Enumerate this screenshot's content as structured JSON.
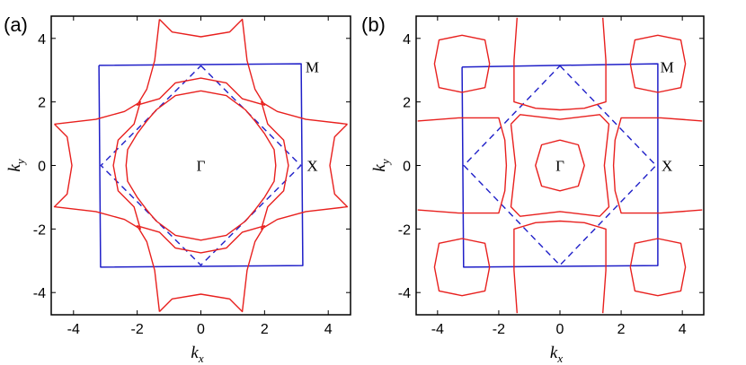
{
  "chart_data": [
    {
      "type": "line",
      "panel_label": "(a)",
      "xlabel": "k",
      "xlabel_sub": "x",
      "ylabel": "k",
      "ylabel_sub": "y",
      "xlim": [
        -4.7,
        4.7
      ],
      "ylim": [
        -4.7,
        4.7
      ],
      "xticks": [
        -4,
        -2,
        0,
        2,
        4
      ],
      "yticks": [
        -4,
        -2,
        0,
        2,
        4
      ],
      "grid": false,
      "colors": {
        "fermi_surface": "#e8201e",
        "brillouin_zone": "#1f1fc8"
      },
      "series": [
        {
          "role": "brillouin-zone",
          "style": "solid",
          "color": "#1f1fc8",
          "points": [
            [
              -3.2,
              3.15
            ],
            [
              3.15,
              3.2
            ],
            [
              3.2,
              -3.15
            ],
            [
              -3.15,
              -3.2
            ],
            [
              -3.2,
              3.15
            ]
          ]
        },
        {
          "role": "folded-zone",
          "style": "dashed",
          "color": "#1f1fc8",
          "points": [
            [
              0,
              3.14
            ],
            [
              3.14,
              0
            ],
            [
              0,
              -3.14
            ],
            [
              -3.14,
              0
            ],
            [
              0,
              3.14
            ]
          ]
        },
        {
          "role": "fermi-surface-center",
          "style": "solid",
          "color": "#e8201e",
          "points": [
            [
              0,
              2.35
            ],
            [
              0.8,
              2.2
            ],
            [
              1.4,
              1.75
            ],
            [
              1.7,
              1.4
            ],
            [
              2.0,
              1.0
            ],
            [
              2.3,
              0.5
            ],
            [
              2.35,
              0
            ],
            [
              2.3,
              -0.5
            ],
            [
              2.0,
              -1.0
            ],
            [
              1.7,
              -1.4
            ],
            [
              1.4,
              -1.75
            ],
            [
              0.8,
              -2.2
            ],
            [
              0,
              -2.35
            ],
            [
              -0.8,
              -2.2
            ],
            [
              -1.4,
              -1.75
            ],
            [
              -1.7,
              -1.4
            ],
            [
              -2.0,
              -1.0
            ],
            [
              -2.3,
              -0.5
            ],
            [
              -2.35,
              0
            ],
            [
              -2.3,
              0.5
            ],
            [
              -2.0,
              1.0
            ],
            [
              -1.7,
              1.4
            ],
            [
              -1.4,
              1.75
            ],
            [
              -0.8,
              2.2
            ],
            [
              0,
              2.35
            ]
          ]
        },
        {
          "role": "fermi-surface-top",
          "style": "solid",
          "color": "#e8201e",
          "points": [
            [
              -1.3,
              4.6
            ],
            [
              -0.9,
              4.2
            ],
            [
              0,
              4.05
            ],
            [
              0.9,
              4.2
            ],
            [
              1.3,
              4.6
            ],
            [
              1.45,
              3.3
            ],
            [
              1.7,
              2.4
            ],
            [
              2.0,
              1.9
            ],
            [
              1.3,
              2.1
            ],
            [
              0.8,
              2.6
            ],
            [
              0,
              2.75
            ],
            [
              -0.8,
              2.6
            ],
            [
              -1.3,
              2.1
            ],
            [
              -2.0,
              1.9
            ],
            [
              -1.7,
              2.4
            ],
            [
              -1.45,
              3.3
            ],
            [
              -1.3,
              4.6
            ]
          ]
        },
        {
          "role": "fermi-surface-bottom",
          "style": "solid",
          "color": "#e8201e",
          "points": [
            [
              -1.3,
              -4.6
            ],
            [
              -0.9,
              -4.2
            ],
            [
              0,
              -4.05
            ],
            [
              0.9,
              -4.2
            ],
            [
              1.3,
              -4.6
            ],
            [
              1.45,
              -3.3
            ],
            [
              1.7,
              -2.4
            ],
            [
              2.0,
              -1.9
            ],
            [
              1.3,
              -2.1
            ],
            [
              0.8,
              -2.6
            ],
            [
              0,
              -2.75
            ],
            [
              -0.8,
              -2.6
            ],
            [
              -1.3,
              -2.1
            ],
            [
              -2.0,
              -1.9
            ],
            [
              -1.7,
              -2.4
            ],
            [
              -1.45,
              -3.3
            ],
            [
              -1.3,
              -4.6
            ]
          ]
        },
        {
          "role": "fermi-surface-right",
          "style": "solid",
          "color": "#e8201e",
          "points": [
            [
              4.6,
              1.3
            ],
            [
              4.2,
              0.9
            ],
            [
              4.05,
              0
            ],
            [
              4.2,
              -0.9
            ],
            [
              4.6,
              -1.3
            ],
            [
              3.3,
              -1.45
            ],
            [
              2.4,
              -1.7
            ],
            [
              1.9,
              -2.0
            ],
            [
              2.1,
              -1.3
            ],
            [
              2.6,
              -0.8
            ],
            [
              2.75,
              0
            ],
            [
              2.6,
              0.8
            ],
            [
              2.1,
              1.3
            ],
            [
              1.9,
              2.0
            ],
            [
              2.4,
              1.7
            ],
            [
              3.3,
              1.45
            ],
            [
              4.6,
              1.3
            ]
          ]
        },
        {
          "role": "fermi-surface-left",
          "style": "solid",
          "color": "#e8201e",
          "points": [
            [
              -4.6,
              1.3
            ],
            [
              -4.2,
              0.9
            ],
            [
              -4.05,
              0
            ],
            [
              -4.2,
              -0.9
            ],
            [
              -4.6,
              -1.3
            ],
            [
              -3.3,
              -1.45
            ],
            [
              -2.4,
              -1.7
            ],
            [
              -1.9,
              -2.0
            ],
            [
              -2.1,
              -1.3
            ],
            [
              -2.6,
              -0.8
            ],
            [
              -2.75,
              0
            ],
            [
              -2.6,
              0.8
            ],
            [
              -2.1,
              1.3
            ],
            [
              -1.9,
              2.0
            ],
            [
              -2.4,
              1.7
            ],
            [
              -3.3,
              1.45
            ],
            [
              -4.6,
              1.3
            ]
          ]
        }
      ],
      "annotations": [
        {
          "text": "Γ",
          "x": 0,
          "y": 0
        },
        {
          "text": "M",
          "x": 3.5,
          "y": 3.1
        },
        {
          "text": "X",
          "x": 3.5,
          "y": 0
        }
      ]
    },
    {
      "type": "line",
      "panel_label": "(b)",
      "xlabel": "k",
      "xlabel_sub": "x",
      "ylabel": "k",
      "ylabel_sub": "y",
      "xlim": [
        -4.7,
        4.7
      ],
      "ylim": [
        -4.7,
        4.7
      ],
      "xticks": [
        -4,
        -2,
        0,
        2,
        4
      ],
      "yticks": [
        -4,
        -2,
        0,
        2,
        4
      ],
      "grid": false,
      "colors": {
        "fermi_surface": "#e8201e",
        "brillouin_zone": "#1f1fc8"
      },
      "series": [
        {
          "role": "brillouin-zone",
          "style": "solid",
          "color": "#1f1fc8",
          "points": [
            [
              -3.2,
              3.1
            ],
            [
              3.2,
              3.2
            ],
            [
              3.2,
              -3.15
            ],
            [
              -3.15,
              -3.2
            ],
            [
              -3.2,
              3.1
            ]
          ]
        },
        {
          "role": "folded-zone",
          "style": "dashed",
          "color": "#1f1fc8",
          "points": [
            [
              0,
              3.14
            ],
            [
              3.14,
              0
            ],
            [
              0,
              -3.14
            ],
            [
              -3.14,
              0
            ],
            [
              0,
              3.14
            ]
          ]
        },
        {
          "role": "pocket-gamma",
          "style": "solid",
          "color": "#e8201e",
          "points": [
            [
              0,
              0.8
            ],
            [
              0.6,
              0.65
            ],
            [
              0.8,
              0
            ],
            [
              0.6,
              -0.65
            ],
            [
              0,
              -0.8
            ],
            [
              -0.6,
              -0.65
            ],
            [
              -0.8,
              0
            ],
            [
              -0.6,
              0.65
            ],
            [
              0,
              0.8
            ]
          ]
        },
        {
          "role": "square-center",
          "style": "solid",
          "color": "#e8201e",
          "points": [
            [
              -1.6,
              1.3
            ],
            [
              -1.3,
              1.6
            ],
            [
              0,
              1.45
            ],
            [
              1.3,
              1.6
            ],
            [
              1.6,
              1.3
            ],
            [
              1.45,
              0
            ],
            [
              1.6,
              -1.3
            ],
            [
              1.3,
              -1.6
            ],
            [
              0,
              -1.45
            ],
            [
              -1.3,
              -1.6
            ],
            [
              -1.6,
              -1.3
            ],
            [
              -1.45,
              0
            ],
            [
              -1.6,
              1.3
            ]
          ]
        },
        {
          "role": "lobe-top",
          "style": "solid",
          "color": "#e8201e",
          "points": [
            [
              -1.4,
              4.65
            ],
            [
              -1.5,
              3.3
            ],
            [
              -1.5,
              2.0
            ],
            [
              -0.8,
              1.8
            ],
            [
              0,
              1.75
            ],
            [
              0.8,
              1.8
            ],
            [
              1.5,
              2.0
            ],
            [
              1.5,
              3.3
            ],
            [
              1.4,
              4.65
            ]
          ]
        },
        {
          "role": "lobe-bottom",
          "style": "solid",
          "color": "#e8201e",
          "points": [
            [
              -1.4,
              -4.65
            ],
            [
              -1.5,
              -3.3
            ],
            [
              -1.5,
              -2.0
            ],
            [
              -0.8,
              -1.8
            ],
            [
              0,
              -1.75
            ],
            [
              0.8,
              -1.8
            ],
            [
              1.5,
              -2.0
            ],
            [
              1.5,
              -3.3
            ],
            [
              1.4,
              -4.65
            ]
          ]
        },
        {
          "role": "lobe-right",
          "style": "solid",
          "color": "#e8201e",
          "points": [
            [
              4.65,
              1.4
            ],
            [
              3.3,
              1.5
            ],
            [
              2.0,
              1.5
            ],
            [
              1.8,
              0.8
            ],
            [
              1.75,
              0
            ],
            [
              1.8,
              -0.8
            ],
            [
              2.0,
              -1.5
            ],
            [
              3.3,
              -1.5
            ],
            [
              4.65,
              -1.4
            ]
          ]
        },
        {
          "role": "lobe-left",
          "style": "solid",
          "color": "#e8201e",
          "points": [
            [
              -4.65,
              1.4
            ],
            [
              -3.3,
              1.5
            ],
            [
              -2.0,
              1.5
            ],
            [
              -1.8,
              0.8
            ],
            [
              -1.75,
              0
            ],
            [
              -1.8,
              -0.8
            ],
            [
              -2.0,
              -1.5
            ],
            [
              -3.3,
              -1.5
            ],
            [
              -4.65,
              -1.4
            ]
          ]
        },
        {
          "role": "pocket-m-top-right",
          "style": "solid",
          "color": "#e8201e",
          "points": [
            [
              2.3,
              3.2
            ],
            [
              2.45,
              2.45
            ],
            [
              3.2,
              2.3
            ],
            [
              3.95,
              2.45
            ],
            [
              4.1,
              3.2
            ],
            [
              3.95,
              3.95
            ],
            [
              3.2,
              4.1
            ],
            [
              2.45,
              3.95
            ],
            [
              2.3,
              3.2
            ]
          ]
        },
        {
          "role": "pocket-m-top-left",
          "style": "solid",
          "color": "#e8201e",
          "points": [
            [
              -2.3,
              3.2
            ],
            [
              -2.45,
              2.45
            ],
            [
              -3.2,
              2.3
            ],
            [
              -3.95,
              2.45
            ],
            [
              -4.1,
              3.2
            ],
            [
              -3.95,
              3.95
            ],
            [
              -3.2,
              4.1
            ],
            [
              -2.45,
              3.95
            ],
            [
              -2.3,
              3.2
            ]
          ]
        },
        {
          "role": "pocket-m-bottom-right",
          "style": "solid",
          "color": "#e8201e",
          "points": [
            [
              2.3,
              -3.2
            ],
            [
              2.45,
              -2.45
            ],
            [
              3.2,
              -2.3
            ],
            [
              3.95,
              -2.45
            ],
            [
              4.1,
              -3.2
            ],
            [
              3.95,
              -3.95
            ],
            [
              3.2,
              -4.1
            ],
            [
              2.45,
              -3.95
            ],
            [
              2.3,
              -3.2
            ]
          ]
        },
        {
          "role": "pocket-m-bottom-left",
          "style": "solid",
          "color": "#e8201e",
          "points": [
            [
              -2.3,
              -3.2
            ],
            [
              -2.45,
              -2.45
            ],
            [
              -3.2,
              -2.3
            ],
            [
              -3.95,
              -2.45
            ],
            [
              -4.1,
              -3.2
            ],
            [
              -3.95,
              -3.95
            ],
            [
              -3.2,
              -4.1
            ],
            [
              -2.45,
              -3.95
            ],
            [
              -2.3,
              -3.2
            ]
          ]
        }
      ],
      "annotations": [
        {
          "text": "Γ",
          "x": 0,
          "y": 0
        },
        {
          "text": "M",
          "x": 3.5,
          "y": 3.1
        },
        {
          "text": "X",
          "x": 3.5,
          "y": 0
        }
      ]
    }
  ]
}
